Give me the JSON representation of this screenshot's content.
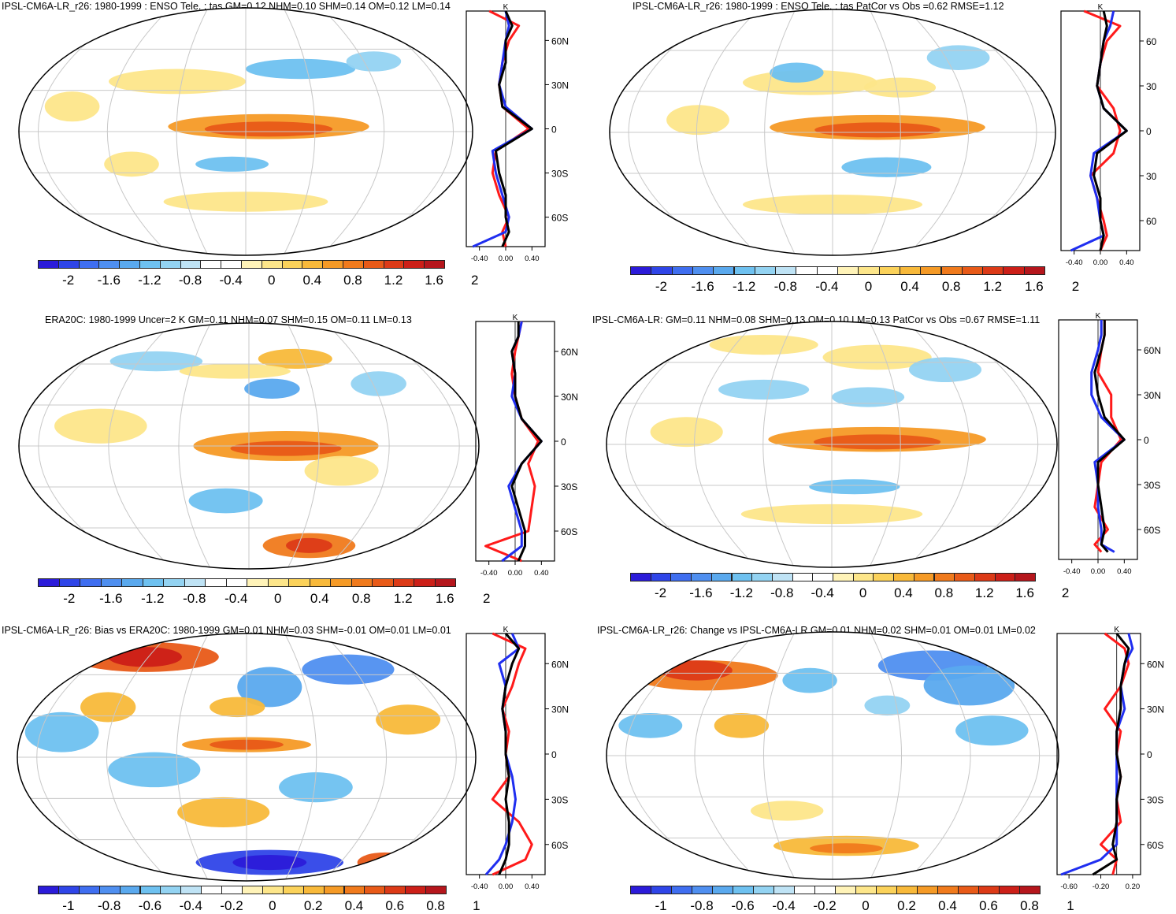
{
  "panels": [
    {
      "id": "p1",
      "title": "IPSL-CM6A-LR_r26: 1980-1999 : ENSO Tele. : tas GM=0.12 NHM=0.10 SHM=0.14 OM=0.12 LM=0.14",
      "colorbar": {
        "labels": [
          "-2",
          "-1.6",
          "-1.2",
          "-0.8",
          "-0.4",
          "0",
          "0.4",
          "0.8",
          "1.2",
          "1.6",
          "2"
        ],
        "min": -2.0,
        "max": 2.0
      },
      "profile": {
        "unit": "K",
        "xticks": [
          "-0.40",
          "0.00",
          "0.40"
        ],
        "xvals": [
          -0.4,
          0,
          0.4
        ],
        "xlim": [
          -0.6,
          0.6
        ],
        "yticks": [
          "60N",
          "30N",
          "0",
          "30S",
          "60S"
        ],
        "ylim": [
          -80,
          80
        ]
      }
    },
    {
      "id": "p2",
      "title": "IPSL-CM6A-LR_r26: 1980-1999 : ENSO Tele. : tas PatCor vs Obs =0.62 RMSE=1.12",
      "colorbar": {
        "labels": [
          "-2",
          "-1.6",
          "-1.2",
          "-0.8",
          "-0.4",
          "0",
          "0.4",
          "0.8",
          "1.2",
          "1.6",
          "2"
        ],
        "min": -2.0,
        "max": 2.0
      },
      "profile": {
        "unit": "K",
        "xticks": [
          "-0.40",
          "0.00",
          "0.40"
        ],
        "xvals": [
          -0.4,
          0,
          0.4
        ],
        "xlim": [
          -0.6,
          0.6
        ],
        "yticks": [
          "60",
          "30",
          "0",
          "30",
          "60"
        ],
        "ylim": [
          -80,
          80
        ]
      }
    },
    {
      "id": "p3",
      "title": "ERA20C: 1980-1999 Uncer=2 K GM=0.11 NHM=0.07 SHM=0.15 OM=0.11 LM=0.13",
      "colorbar": {
        "labels": [
          "-2",
          "-1.6",
          "-1.2",
          "-0.8",
          "-0.4",
          "0",
          "0.4",
          "0.8",
          "1.2",
          "1.6",
          "2"
        ],
        "min": -2.0,
        "max": 2.0
      },
      "profile": {
        "unit": "K",
        "xticks": [
          "-0.40",
          "0.00",
          "0.40"
        ],
        "xvals": [
          -0.4,
          0,
          0.4
        ],
        "xlim": [
          -0.6,
          0.6
        ],
        "yticks": [
          "60N",
          "30N",
          "0",
          "30S",
          "60S"
        ],
        "ylim": [
          -80,
          80
        ]
      }
    },
    {
      "id": "p4",
      "title": "IPSL-CM6A-LR: GM=0.11 NHM=0.08 SHM=0.13 OM=0.10 LM=0.13 PatCor vs Obs =0.67 RMSE=1.11",
      "colorbar": {
        "labels": [
          "-2",
          "-1.6",
          "-1.2",
          "-0.8",
          "-0.4",
          "0",
          "0.4",
          "0.8",
          "1.2",
          "1.6",
          "2"
        ],
        "min": -2.0,
        "max": 2.0
      },
      "profile": {
        "unit": "K",
        "xticks": [
          "-0.40",
          "0.00",
          "0.40"
        ],
        "xvals": [
          -0.4,
          0,
          0.4
        ],
        "xlim": [
          -0.6,
          0.6
        ],
        "yticks": [
          "60N",
          "30N",
          "0",
          "30S",
          "60S"
        ],
        "ylim": [
          -80,
          80
        ]
      }
    },
    {
      "id": "p5",
      "title": "IPSL-CM6A-LR_r26: Bias vs ERA20C: 1980-1999 GM=0.01 NHM=0.03 SHM=-0.01 OM=0.01 LM=0.01",
      "colorbar": {
        "labels": [
          "-1",
          "-0.8",
          "-0.6",
          "-0.4",
          "-0.2",
          "0",
          "0.2",
          "0.4",
          "0.6",
          "0.8",
          "1"
        ],
        "min": -1.0,
        "max": 1.0
      },
      "profile": {
        "unit": "K",
        "xticks": [
          "-0.40",
          "0.00",
          "0.40"
        ],
        "xvals": [
          -0.4,
          0,
          0.4
        ],
        "xlim": [
          -0.6,
          0.6
        ],
        "yticks": [
          "60N",
          "30N",
          "0",
          "30S",
          "60S"
        ],
        "ylim": [
          -80,
          80
        ]
      }
    },
    {
      "id": "p6",
      "title": "IPSL-CM6A-LR_r26: Change vs IPSL-CM6A-LR GM=0.01 NHM=0.02 SHM=0.01 OM=0.01 LM=0.02",
      "colorbar": {
        "labels": [
          "-1",
          "-0.8",
          "-0.6",
          "-0.4",
          "-0.2",
          "0",
          "0.2",
          "0.4",
          "0.6",
          "0.8",
          "1"
        ],
        "min": -1.0,
        "max": 1.0
      },
      "profile": {
        "unit": "K",
        "xticks": [
          "-0.60",
          "-0.20",
          "0.20"
        ],
        "xvals": [
          -0.6,
          -0.2,
          0.2
        ],
        "xlim": [
          -0.75,
          0.3
        ],
        "yticks": [
          "60N",
          "30N",
          "0",
          "30S",
          "60S"
        ],
        "ylim": [
          -80,
          80
        ]
      }
    }
  ],
  "colormap": [
    "#2b1bd9",
    "#2f45e8",
    "#3f6ef0",
    "#4f8ff0",
    "#5aa9ee",
    "#6ec1f0",
    "#93d3f2",
    "#bfe3f5",
    "#ffffff",
    "#ffffff",
    "#fff3b8",
    "#fde68a",
    "#fbd25a",
    "#f8b93a",
    "#f59a26",
    "#f07a1c",
    "#e85a18",
    "#dc3a17",
    "#cc1f18",
    "#b5161c"
  ],
  "chart_data": [
    {
      "type": "heatmap",
      "panel": "p1",
      "title": "IPSL-CM6A-LR_r26: 1980-1999 : ENSO Tele. : tas GM=0.12 NHM=0.10 SHM=0.14 OM=0.12 LM=0.14",
      "colorbar_range": [
        -2,
        2
      ],
      "zonal_profile": {
        "lat": [
          -80,
          -70,
          -60,
          -45,
          -30,
          -15,
          0,
          15,
          30,
          45,
          60,
          70,
          80
        ],
        "series": [
          {
            "color": "red",
            "values": [
              0.0,
              -0.05,
              0.05,
              -0.1,
              -0.2,
              -0.15,
              0.35,
              -0.05,
              -0.1,
              -0.05,
              0.05,
              0.2,
              -0.25
            ]
          },
          {
            "color": "blue",
            "values": [
              -0.5,
              0.0,
              0.05,
              -0.05,
              -0.15,
              -0.2,
              0.4,
              0.0,
              -0.1,
              -0.05,
              0.0,
              0.05,
              0.0
            ]
          },
          {
            "color": "black",
            "values": [
              -0.05,
              0.05,
              0.0,
              0.0,
              -0.1,
              -0.15,
              0.4,
              -0.05,
              -0.1,
              0.0,
              0.0,
              0.1,
              0.0
            ]
          }
        ]
      }
    },
    {
      "type": "heatmap",
      "panel": "p2",
      "title": "IPSL-CM6A-LR_r26: 1980-1999 : ENSO Tele. : tas PatCor vs Obs =0.62 RMSE=1.12",
      "colorbar_range": [
        -2,
        2
      ],
      "zonal_profile": {
        "lat": [
          -80,
          -70,
          -60,
          -45,
          -30,
          -15,
          0,
          15,
          30,
          45,
          60,
          70,
          80
        ],
        "series": [
          {
            "color": "red",
            "values": [
              0.0,
              0.1,
              0.05,
              -0.05,
              -0.15,
              0.2,
              0.3,
              0.2,
              -0.05,
              0.0,
              0.1,
              0.3,
              -0.25
            ]
          },
          {
            "color": "blue",
            "values": [
              -0.45,
              0.05,
              0.0,
              -0.05,
              -0.15,
              -0.1,
              0.4,
              0.05,
              -0.05,
              0.0,
              0.05,
              0.15,
              0.2
            ]
          },
          {
            "color": "black",
            "values": [
              0.0,
              0.05,
              0.0,
              0.0,
              -0.1,
              -0.05,
              0.4,
              0.05,
              -0.05,
              0.0,
              0.05,
              0.1,
              0.05
            ]
          }
        ]
      }
    },
    {
      "type": "heatmap",
      "panel": "p3",
      "title": "ERA20C: 1980-1999 Uncer=2 K GM=0.11 NHM=0.07 SHM=0.15 OM=0.11 LM=0.13",
      "colorbar_range": [
        -2,
        2
      ],
      "zonal_profile": {
        "lat": [
          -80,
          -70,
          -60,
          -45,
          -30,
          -15,
          0,
          15,
          30,
          45,
          60,
          70,
          80
        ],
        "series": [
          {
            "color": "red",
            "values": [
              0.1,
              -0.45,
              0.2,
              0.25,
              0.3,
              0.2,
              0.35,
              0.1,
              0.0,
              -0.05,
              0.0,
              0.05,
              0.1
            ]
          },
          {
            "color": "blue",
            "values": [
              -0.2,
              0.1,
              0.1,
              0.0,
              -0.1,
              0.1,
              0.4,
              0.1,
              -0.05,
              0.0,
              -0.05,
              0.05,
              0.1
            ]
          },
          {
            "color": "black",
            "values": [
              0.05,
              0.15,
              0.15,
              0.05,
              -0.05,
              0.1,
              0.4,
              0.1,
              0.0,
              0.0,
              -0.05,
              0.05,
              0.05
            ]
          }
        ]
      }
    },
    {
      "type": "heatmap",
      "panel": "p4",
      "title": "IPSL-CM6A-LR: GM=0.11 NHM=0.08 SHM=0.13 OM=0.10 LM=0.13 PatCor vs Obs =0.67 RMSE=1.11",
      "colorbar_range": [
        -2,
        2
      ],
      "zonal_profile": {
        "lat": [
          -75,
          -70,
          -60,
          -45,
          -30,
          -15,
          0,
          15,
          30,
          45,
          60,
          70,
          80
        ],
        "series": [
          {
            "color": "red",
            "values": [
              0.05,
              -0.05,
              0.15,
              -0.05,
              0.0,
              0.05,
              0.35,
              0.2,
              0.2,
              0.0,
              0.05,
              0.1,
              0.1
            ]
          },
          {
            "color": "blue",
            "values": [
              0.25,
              0.05,
              0.05,
              0.0,
              0.0,
              -0.05,
              0.4,
              0.05,
              -0.1,
              -0.1,
              0.0,
              0.05,
              0.05
            ]
          },
          {
            "color": "black",
            "values": [
              0.15,
              0.05,
              0.1,
              0.05,
              0.0,
              0.0,
              0.4,
              0.1,
              0.0,
              -0.05,
              0.05,
              0.1,
              0.1
            ]
          }
        ]
      }
    },
    {
      "type": "heatmap",
      "panel": "p5",
      "title": "IPSL-CM6A-LR_r26: Bias vs ERA20C: 1980-1999 GM=0.01 NHM=0.03 SHM=-0.01 OM=0.01 LM=0.01",
      "colorbar_range": [
        -1,
        1
      ],
      "zonal_profile": {
        "lat": [
          -80,
          -70,
          -60,
          -45,
          -30,
          -15,
          0,
          15,
          30,
          45,
          60,
          70,
          80
        ],
        "series": [
          {
            "color": "red",
            "values": [
              -0.2,
              0.3,
              0.4,
              0.2,
              -0.2,
              0.05,
              0.0,
              0.05,
              -0.05,
              0.1,
              0.2,
              0.3,
              -0.2
            ]
          },
          {
            "color": "blue",
            "values": [
              -0.3,
              -0.1,
              0.0,
              0.1,
              0.15,
              0.1,
              0.0,
              0.0,
              -0.05,
              0.0,
              -0.1,
              0.2,
              0.1
            ]
          },
          {
            "color": "black",
            "values": [
              -0.1,
              0.0,
              0.05,
              0.05,
              0.0,
              0.05,
              0.0,
              0.0,
              -0.05,
              0.0,
              0.1,
              0.2,
              0.0
            ]
          }
        ]
      }
    },
    {
      "type": "heatmap",
      "panel": "p6",
      "title": "IPSL-CM6A-LR_r26: Change vs IPSL-CM6A-LR GM=0.01 NHM=0.02 SHM=0.01 OM=0.01 LM=0.02",
      "colorbar_range": [
        -1,
        1
      ],
      "zonal_profile": {
        "lat": [
          -80,
          -70,
          -60,
          -45,
          -30,
          -15,
          0,
          15,
          30,
          45,
          60,
          70,
          80
        ],
        "series": [
          {
            "color": "red",
            "values": [
              -0.05,
              0.0,
              -0.2,
              0.05,
              0.0,
              0.05,
              0.0,
              0.05,
              -0.15,
              0.05,
              0.15,
              0.1,
              -0.15
            ]
          },
          {
            "color": "blue",
            "values": [
              -0.7,
              -0.2,
              0.0,
              0.0,
              0.0,
              0.0,
              0.0,
              0.0,
              0.1,
              0.05,
              0.1,
              0.2,
              0.15
            ]
          },
          {
            "color": "black",
            "values": [
              -0.3,
              0.0,
              -0.05,
              0.0,
              0.0,
              0.05,
              0.0,
              0.0,
              0.05,
              0.05,
              0.1,
              0.15,
              0.0
            ]
          }
        ]
      }
    }
  ]
}
